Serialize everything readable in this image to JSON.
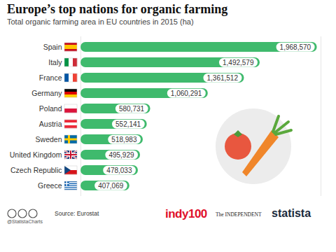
{
  "chart_data": {
    "type": "bar",
    "orientation": "horizontal",
    "title": "Europe’s top nations for organic farming",
    "subtitle": "Total organic farming area in EU countries in 2015 (ha)",
    "categories": [
      "Spain",
      "Italy",
      "France",
      "Germany",
      "Poland",
      "Austria",
      "Sweden",
      "United Kingdom",
      "Czech Republic",
      "Greece"
    ],
    "values": [
      1968570,
      1492579,
      1361512,
      1060291,
      580731,
      552141,
      518983,
      495929,
      478033,
      407069
    ],
    "value_labels": [
      "1,968,570",
      "1,492,579",
      "1,361,512",
      "1,060,291",
      "580,731",
      "552,141",
      "518,983",
      "495,929",
      "478,033",
      "407,069"
    ],
    "color": "#3fba6d",
    "xlim": [
      0,
      2000000
    ],
    "data_labels": true,
    "tick_labels": "y",
    "grid": false,
    "source": "Source: Eurostat",
    "credits": [
      "@StatistaCharts",
      "indy100",
      "The INDEPENDENT",
      "statista"
    ]
  }
}
